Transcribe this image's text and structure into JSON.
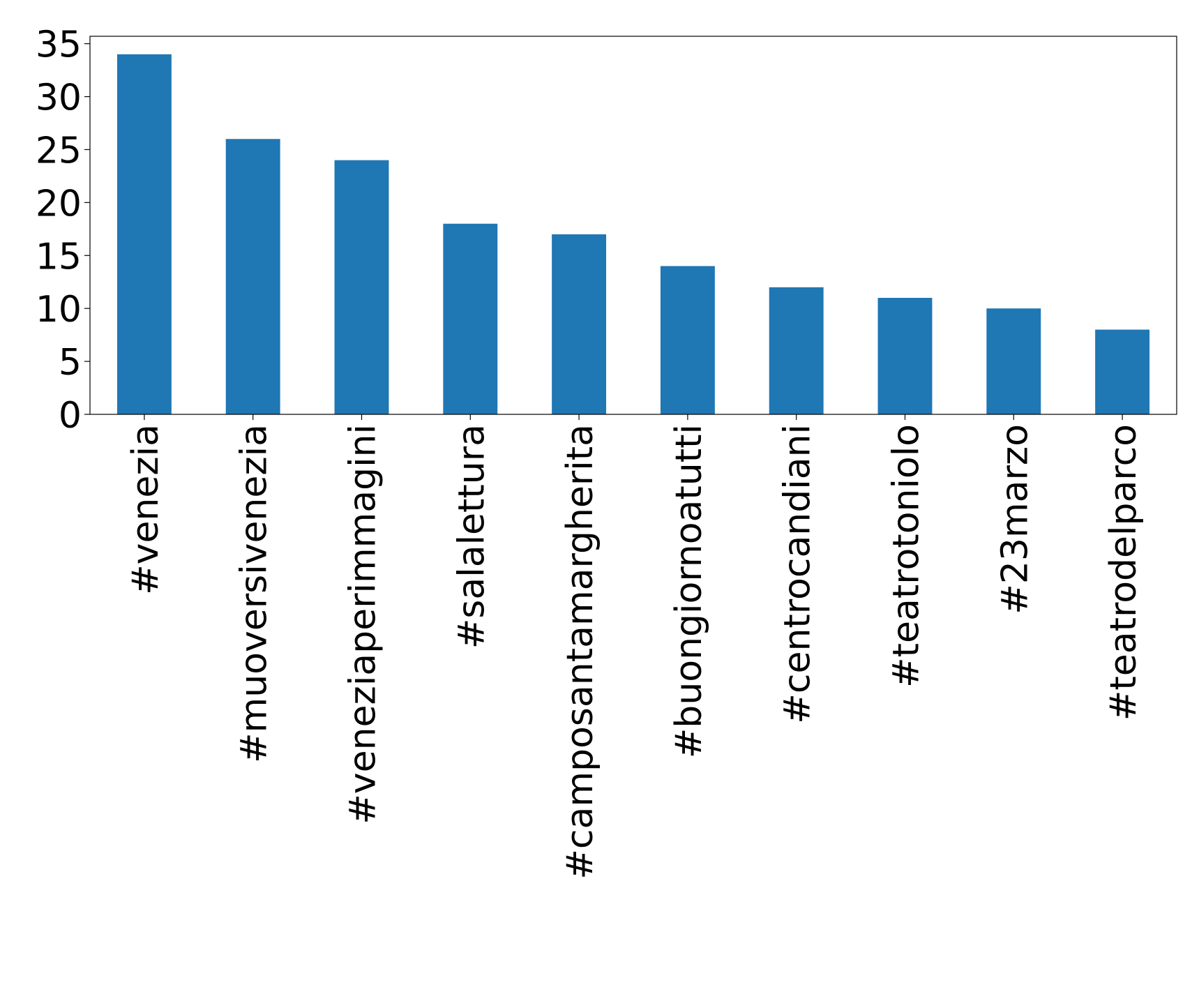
{
  "chart_data": {
    "type": "bar",
    "categories": [
      "#venezia",
      "#muoversivenezia",
      "#veneziaperimmagini",
      "#salalettura",
      "#camposantamargherita",
      "#buongiornoatutti",
      "#centrocandiani",
      "#teatrotoniolo",
      "#23marzo",
      "#teatrodelparco"
    ],
    "values": [
      34,
      26,
      24,
      18,
      17,
      14,
      12,
      11,
      10,
      8
    ],
    "color": "#1f77b4",
    "ylim": [
      0,
      35.7
    ],
    "yticks": [
      0,
      5,
      10,
      15,
      20,
      25,
      30,
      35
    ],
    "grid": false
  }
}
